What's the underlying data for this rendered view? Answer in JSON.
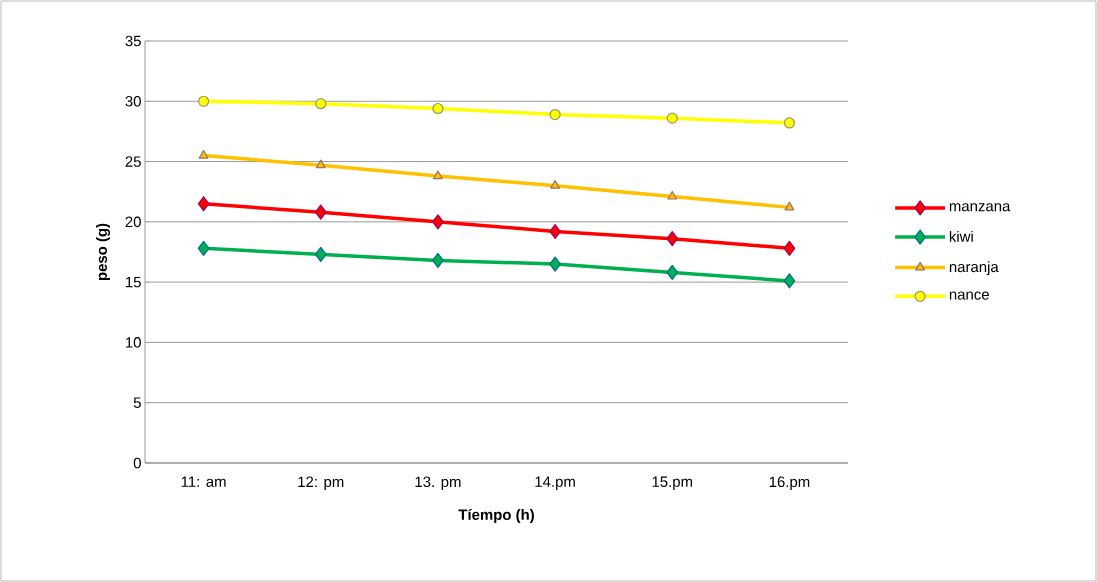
{
  "chart_data": {
    "type": "line",
    "xlabel": "Tíempo (h)",
    "ylabel": "peso (g)",
    "categories": [
      "11: am",
      "12: pm",
      "13. pm",
      "14.pm",
      "15.pm",
      "16.pm"
    ],
    "ylim": [
      0,
      35
    ],
    "yticks": [
      0,
      5,
      10,
      15,
      20,
      25,
      30,
      35
    ],
    "grid": "y",
    "legend": "right",
    "line_style": "solid",
    "series": [
      {
        "name": "manzana",
        "color": "#ff0000",
        "marker": "diamond",
        "values": [
          21.5,
          20.8,
          20.0,
          19.2,
          18.6,
          17.8
        ]
      },
      {
        "name": "kiwi",
        "color": "#00b050",
        "marker": "diamond",
        "values": [
          17.8,
          17.3,
          16.8,
          16.5,
          15.8,
          15.1
        ]
      },
      {
        "name": "naranja",
        "color": "#ffc000",
        "marker": "triangle",
        "values": [
          25.5,
          24.7,
          23.8,
          23.0,
          22.1,
          21.2
        ]
      },
      {
        "name": "nance",
        "color": "#ffff00",
        "marker": "circle",
        "values": [
          30.0,
          29.8,
          29.4,
          28.9,
          28.6,
          28.2
        ]
      }
    ]
  }
}
